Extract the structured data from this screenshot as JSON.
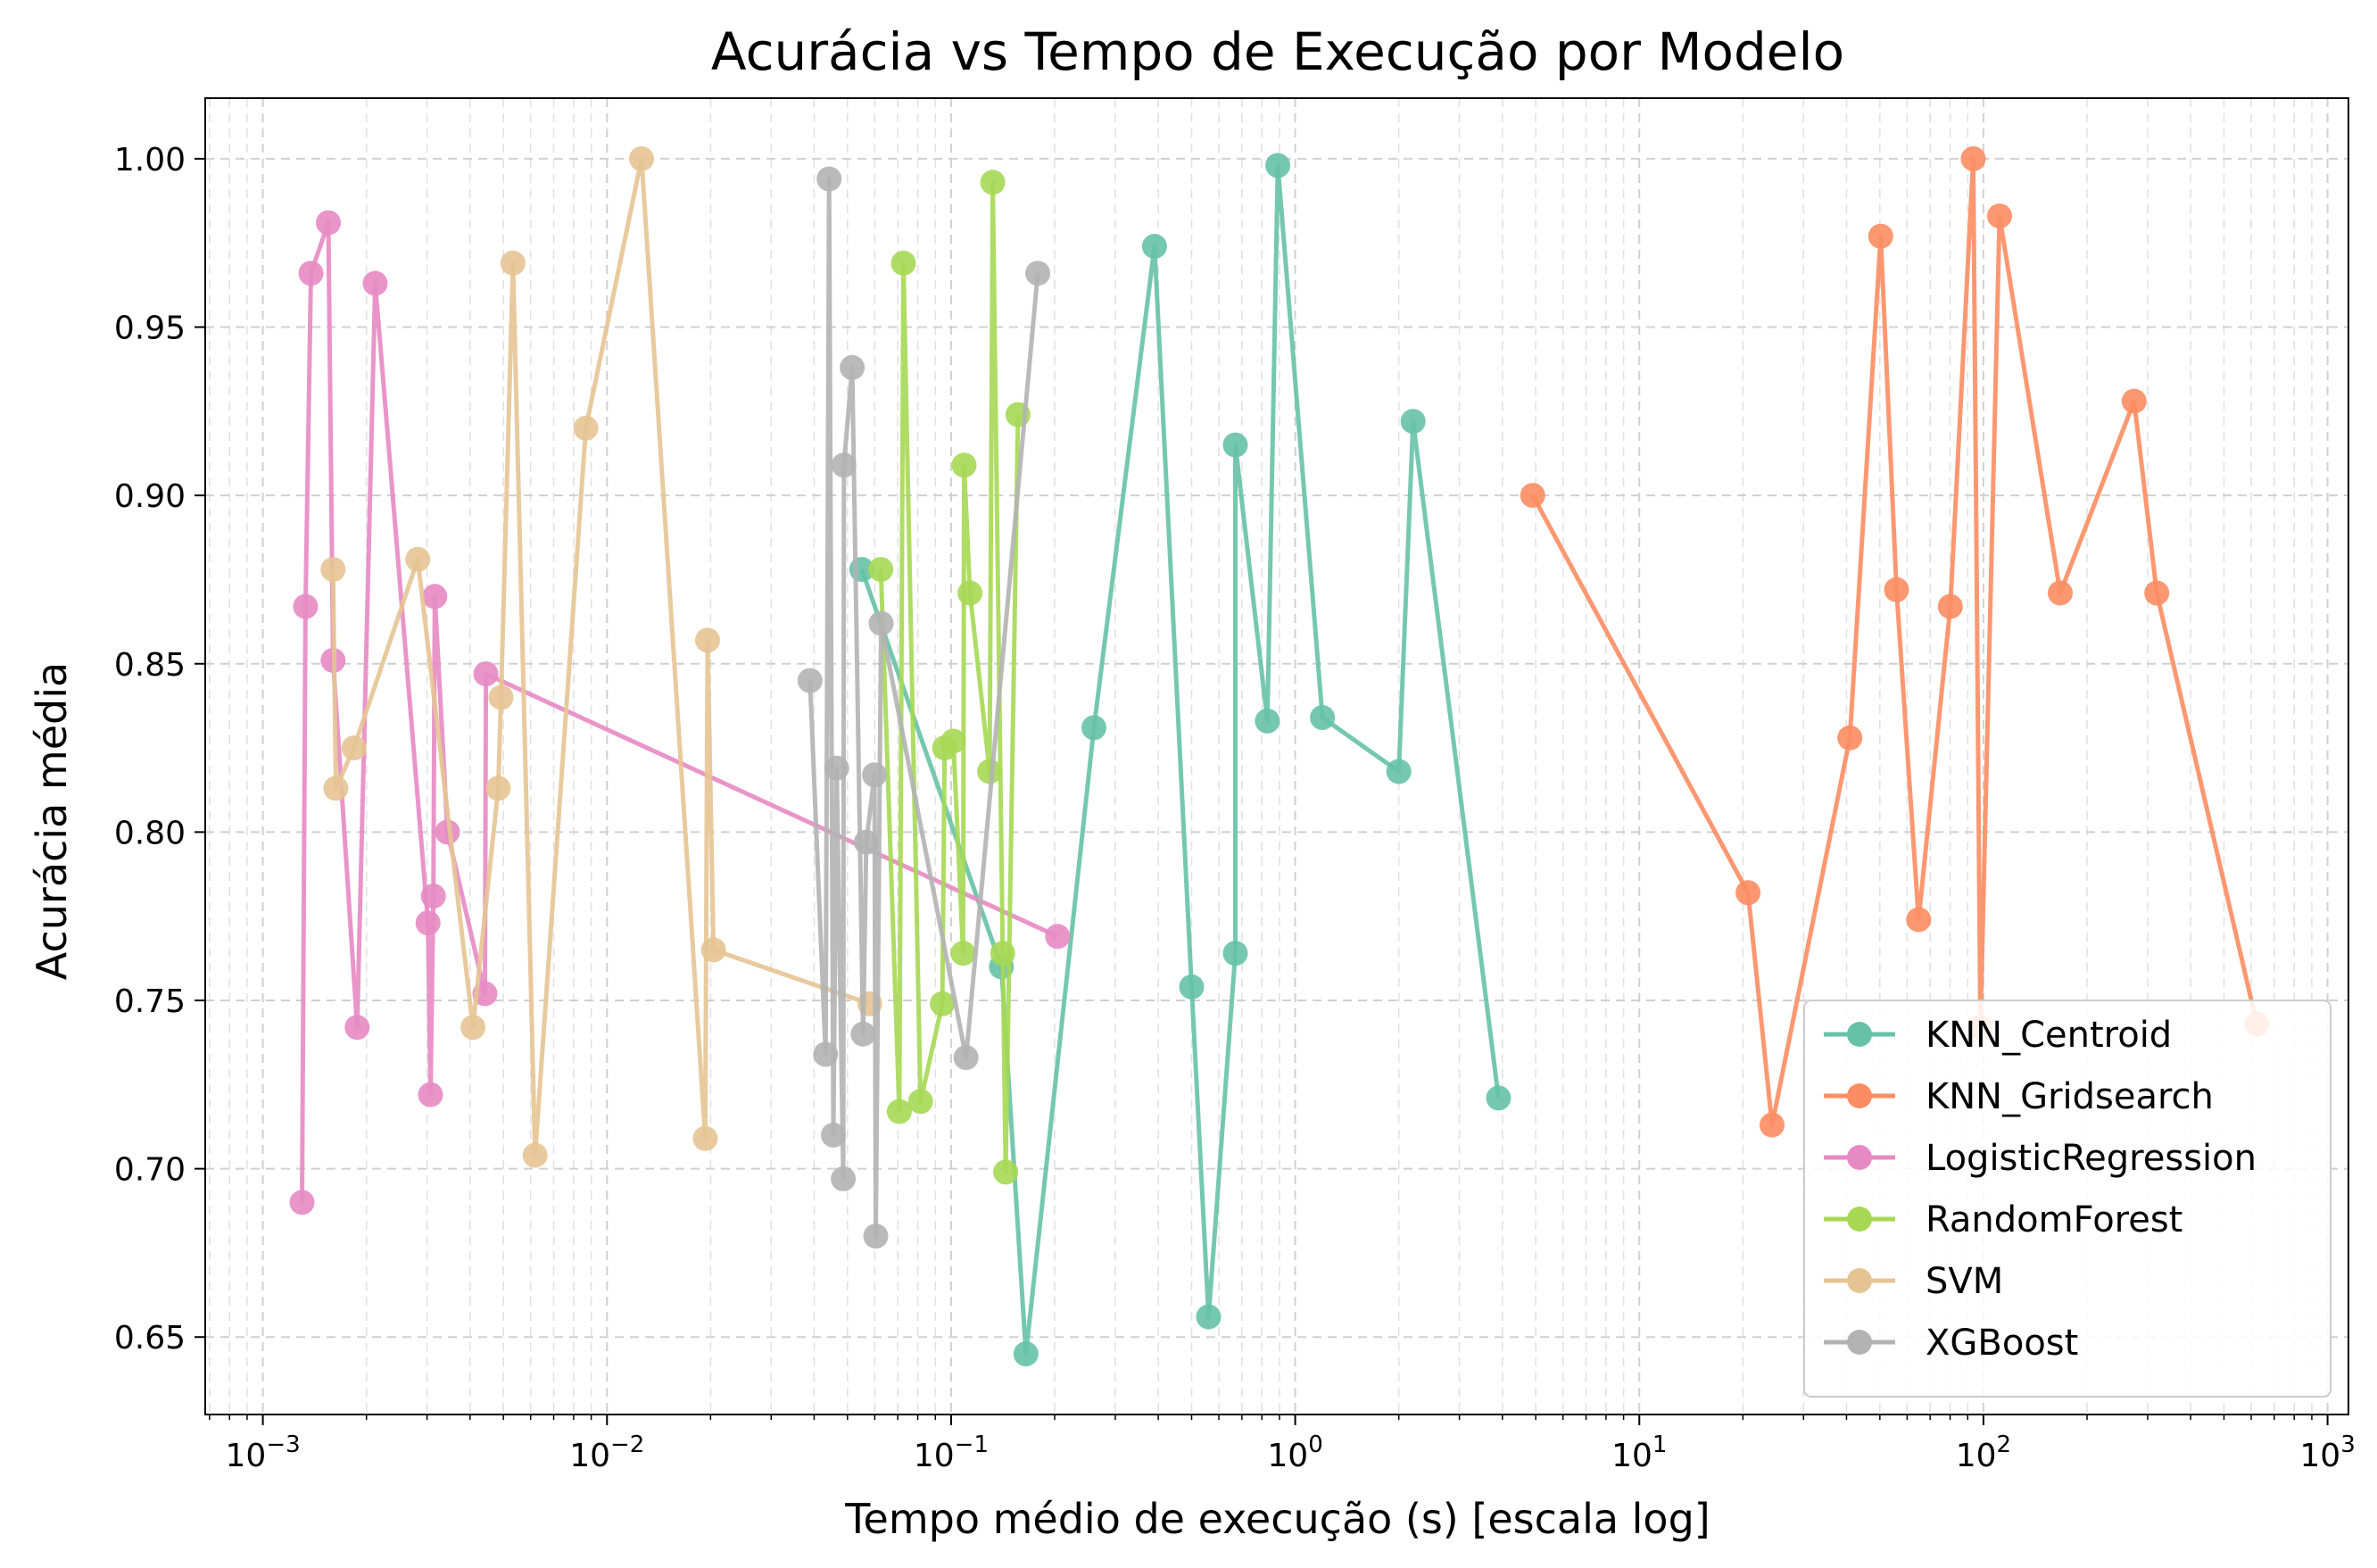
{
  "chart_data": {
    "type": "line",
    "title": "Acurácia vs Tempo de Execução por Modelo",
    "xlabel": "Tempo médio de execução (s) [escala log]",
    "ylabel": "Acurácia média",
    "xscale": "log",
    "xlim": [
      0.00068,
      1150
    ],
    "ylim": [
      0.627,
      1.018
    ],
    "grid": true,
    "legend_position": "lower-right",
    "x_ticks": [
      {
        "value": 0.001,
        "base": "10",
        "exp": "−3"
      },
      {
        "value": 0.01,
        "base": "10",
        "exp": "−2"
      },
      {
        "value": 0.1,
        "base": "10",
        "exp": "−1"
      },
      {
        "value": 1,
        "base": "10",
        "exp": "0"
      },
      {
        "value": 10,
        "base": "10",
        "exp": "1"
      },
      {
        "value": 100,
        "base": "10",
        "exp": "2"
      },
      {
        "value": 1000,
        "base": "10",
        "exp": "3"
      }
    ],
    "y_ticks": [
      {
        "value": 0.65,
        "label": "0.65"
      },
      {
        "value": 0.7,
        "label": "0.70"
      },
      {
        "value": 0.75,
        "label": "0.75"
      },
      {
        "value": 0.8,
        "label": "0.80"
      },
      {
        "value": 0.85,
        "label": "0.85"
      },
      {
        "value": 0.9,
        "label": "0.90"
      },
      {
        "value": 0.95,
        "label": "0.95"
      },
      {
        "value": 1.0,
        "label": "1.00"
      }
    ],
    "series": [
      {
        "name": "KNN_Centroid",
        "color": "#66c2a5",
        "points": [
          [
            0.055,
            0.878
          ],
          [
            0.14,
            0.76
          ],
          [
            0.165,
            0.645
          ],
          [
            0.26,
            0.831
          ],
          [
            0.39,
            0.974
          ],
          [
            0.5,
            0.754
          ],
          [
            0.56,
            0.656
          ],
          [
            0.67,
            0.764
          ],
          [
            0.67,
            0.915
          ],
          [
            0.83,
            0.833
          ],
          [
            0.89,
            0.998
          ],
          [
            1.2,
            0.834
          ],
          [
            2.0,
            0.818
          ],
          [
            2.2,
            0.922
          ],
          [
            3.9,
            0.721
          ]
        ]
      },
      {
        "name": "KNN_Gridsearch",
        "color": "#fc8d62",
        "points": [
          [
            4.9,
            0.9
          ],
          [
            20.7,
            0.782
          ],
          [
            24.3,
            0.713
          ],
          [
            40.9,
            0.828
          ],
          [
            50.3,
            0.977
          ],
          [
            55.9,
            0.872
          ],
          [
            64.8,
            0.774
          ],
          [
            80.1,
            0.867
          ],
          [
            93.4,
            1.0
          ],
          [
            98.0,
            0.742
          ],
          [
            111.4,
            0.983
          ],
          [
            167.2,
            0.871
          ],
          [
            274.1,
            0.928
          ],
          [
            318.9,
            0.871
          ],
          [
            623.0,
            0.743
          ]
        ]
      },
      {
        "name": "LogisticRegression",
        "color": "#e78ac3",
        "points": [
          [
            0.0013,
            0.69
          ],
          [
            0.00133,
            0.867
          ],
          [
            0.00138,
            0.966
          ],
          [
            0.00155,
            0.981
          ],
          [
            0.0016,
            0.851
          ],
          [
            0.00188,
            0.742
          ],
          [
            0.00212,
            0.963
          ],
          [
            0.00302,
            0.773
          ],
          [
            0.00307,
            0.722
          ],
          [
            0.00313,
            0.781
          ],
          [
            0.00316,
            0.87
          ],
          [
            0.00344,
            0.8
          ],
          [
            0.00442,
            0.752
          ],
          [
            0.00445,
            0.847
          ],
          [
            0.204,
            0.769
          ]
        ]
      },
      {
        "name": "RandomForest",
        "color": "#a6d854",
        "points": [
          [
            0.0625,
            0.878
          ],
          [
            0.0707,
            0.717
          ],
          [
            0.0727,
            0.969
          ],
          [
            0.0815,
            0.72
          ],
          [
            0.0943,
            0.749
          ],
          [
            0.0958,
            0.825
          ],
          [
            0.1015,
            0.827
          ],
          [
            0.1084,
            0.764
          ],
          [
            0.1091,
            0.909
          ],
          [
            0.1135,
            0.871
          ],
          [
            0.1294,
            0.818
          ],
          [
            0.1321,
            0.993
          ],
          [
            0.1413,
            0.764
          ],
          [
            0.1441,
            0.699
          ],
          [
            0.1565,
            0.924
          ]
        ]
      },
      {
        "name": "SVM",
        "color": "#e5c494",
        "points": [
          [
            0.0016,
            0.878
          ],
          [
            0.00163,
            0.813
          ],
          [
            0.00184,
            0.825
          ],
          [
            0.00282,
            0.881
          ],
          [
            0.00408,
            0.742
          ],
          [
            0.00483,
            0.813
          ],
          [
            0.00492,
            0.84
          ],
          [
            0.00533,
            0.969
          ],
          [
            0.00618,
            0.704
          ],
          [
            0.00868,
            0.92
          ],
          [
            0.0126,
            1.0
          ],
          [
            0.0193,
            0.709
          ],
          [
            0.0196,
            0.857
          ],
          [
            0.0204,
            0.765
          ],
          [
            0.058,
            0.749
          ]
        ]
      },
      {
        "name": "XGBoost",
        "color": "#b3b3b3",
        "points": [
          [
            0.0389,
            0.845
          ],
          [
            0.0432,
            0.734
          ],
          [
            0.0442,
            0.994
          ],
          [
            0.0455,
            0.71
          ],
          [
            0.0465,
            0.819
          ],
          [
            0.0486,
            0.697
          ],
          [
            0.0488,
            0.909
          ],
          [
            0.0516,
            0.938
          ],
          [
            0.0555,
            0.74
          ],
          [
            0.0567,
            0.797
          ],
          [
            0.0599,
            0.817
          ],
          [
            0.0604,
            0.68
          ],
          [
            0.0626,
            0.862
          ],
          [
            0.1105,
            0.733
          ],
          [
            0.1786,
            0.966
          ]
        ]
      }
    ]
  }
}
